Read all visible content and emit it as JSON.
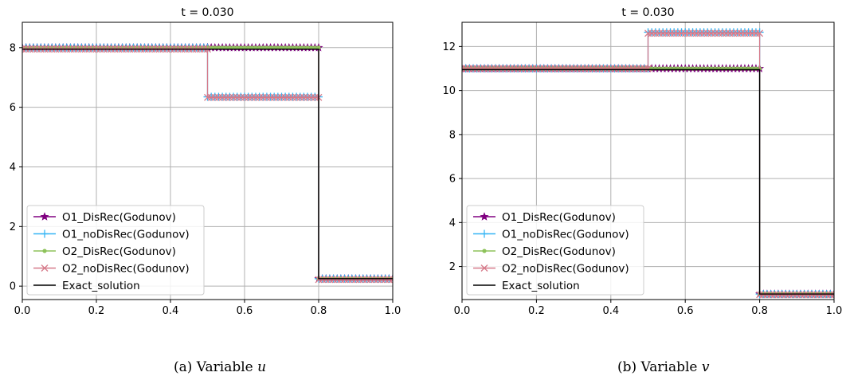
{
  "colors": {
    "o1_disrec": "#800080",
    "o1_nodisrec": "#35b5f5",
    "o2_disrec": "#8dc25a",
    "o2_nodisrec": "#d67a8a",
    "exact": "#000000",
    "grid": "#b0b0b0"
  },
  "chart_data": [
    {
      "type": "line",
      "title": "t = 0.030",
      "caption_prefix": "(a) Variable",
      "caption_var": "u",
      "xlim": [
        0.0,
        1.0
      ],
      "ylim": [
        -0.45,
        8.85
      ],
      "xticks": [
        "0.0",
        "0.2",
        "0.4",
        "0.6",
        "0.8",
        "1.0"
      ],
      "yticks": [
        "0",
        "2",
        "4",
        "6",
        "8"
      ],
      "grid": true,
      "legend_position": "lower-left",
      "series": [
        {
          "name": "O1_DisRec(Godunov)",
          "color_key": "o1_disrec",
          "marker": "star",
          "x": [
            0.0,
            0.5,
            0.5,
            0.8,
            0.8,
            1.0
          ],
          "y": [
            8.0,
            8.0,
            8.0,
            8.0,
            0.25,
            0.25
          ]
        },
        {
          "name": "O1_noDisRec(Godunov)",
          "color_key": "o1_nodisrec",
          "marker": "plus",
          "x": [
            0.0,
            0.5,
            0.5,
            0.8,
            0.8,
            1.0
          ],
          "y": [
            8.0,
            8.0,
            6.35,
            6.35,
            0.25,
            0.25
          ]
        },
        {
          "name": "O2_DisRec(Godunov)",
          "color_key": "o2_disrec",
          "marker": "dot",
          "x": [
            0.0,
            0.5,
            0.5,
            0.8,
            0.8,
            1.0
          ],
          "y": [
            8.0,
            8.0,
            8.0,
            8.0,
            0.25,
            0.25
          ]
        },
        {
          "name": "O2_noDisRec(Godunov)",
          "color_key": "o2_nodisrec",
          "marker": "x",
          "x": [
            0.0,
            0.5,
            0.5,
            0.8,
            0.8,
            1.0
          ],
          "y": [
            7.95,
            7.95,
            6.33,
            6.33,
            0.22,
            0.22
          ]
        },
        {
          "name": "Exact_solution",
          "color_key": "exact",
          "marker": "none",
          "x": [
            0.0,
            0.8,
            0.8,
            1.0
          ],
          "y": [
            7.95,
            7.95,
            0.25,
            0.25
          ]
        }
      ]
    },
    {
      "type": "line",
      "title": "t = 0.030",
      "caption_prefix": "(b) Variable",
      "caption_var": "v",
      "xlim": [
        0.0,
        1.0
      ],
      "ylim": [
        0.5,
        13.1
      ],
      "xticks": [
        "0.0",
        "0.2",
        "0.4",
        "0.6",
        "0.8",
        "1.0"
      ],
      "yticks": [
        "2",
        "4",
        "6",
        "8",
        "10",
        "12"
      ],
      "grid": true,
      "legend_position": "lower-left",
      "series": [
        {
          "name": "O1_DisRec(Godunov)",
          "color_key": "o1_disrec",
          "marker": "star",
          "x": [
            0.0,
            0.8,
            0.8,
            1.0
          ],
          "y": [
            11.0,
            11.0,
            0.75,
            0.75
          ]
        },
        {
          "name": "O1_noDisRec(Godunov)",
          "color_key": "o1_nodisrec",
          "marker": "plus",
          "x": [
            0.0,
            0.5,
            0.5,
            0.8,
            0.8,
            1.0
          ],
          "y": [
            11.0,
            11.0,
            12.65,
            12.65,
            0.75,
            0.75
          ]
        },
        {
          "name": "O2_DisRec(Godunov)",
          "color_key": "o2_disrec",
          "marker": "dot",
          "x": [
            0.0,
            0.8,
            0.8,
            1.0
          ],
          "y": [
            11.0,
            11.0,
            0.75,
            0.75
          ]
        },
        {
          "name": "O2_noDisRec(Godunov)",
          "color_key": "o2_nodisrec",
          "marker": "x",
          "x": [
            0.0,
            0.5,
            0.5,
            0.8,
            0.8,
            1.0
          ],
          "y": [
            11.0,
            11.0,
            12.6,
            12.6,
            0.72,
            0.72
          ]
        },
        {
          "name": "Exact_solution",
          "color_key": "exact",
          "marker": "none",
          "x": [
            0.0,
            0.8,
            0.8,
            1.0
          ],
          "y": [
            10.95,
            10.95,
            0.75,
            0.75
          ]
        }
      ]
    }
  ]
}
